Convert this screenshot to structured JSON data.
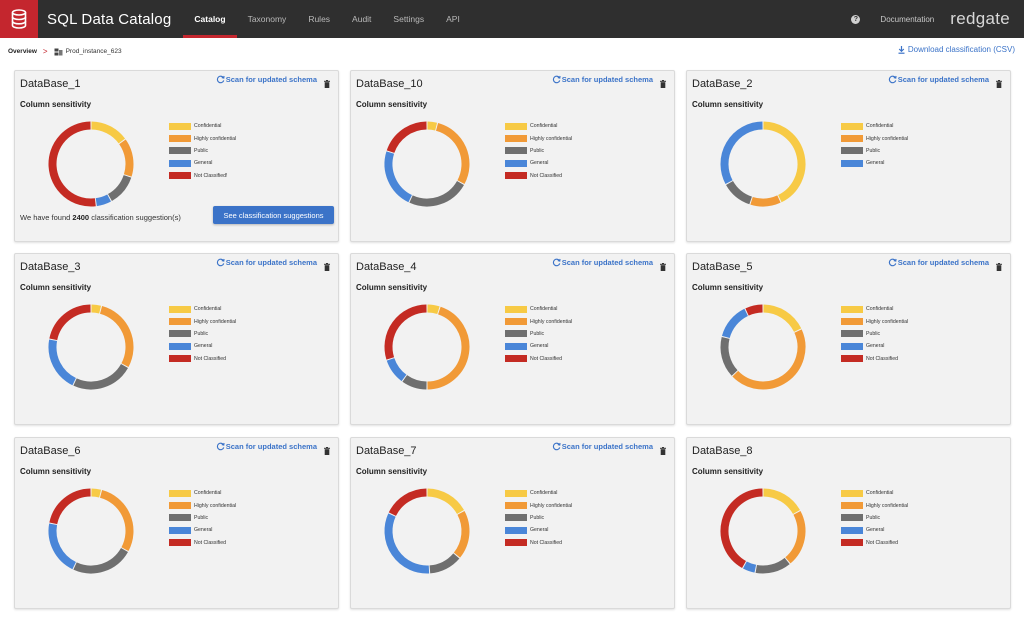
{
  "app": {
    "title": "SQL Data Catalog",
    "brand": "redgate",
    "nav": [
      "Catalog",
      "Taxonomy",
      "Rules",
      "Audit",
      "Settings",
      "API"
    ],
    "active_nav": "Catalog",
    "documentation": "Documentation",
    "help": "?"
  },
  "breadcrumb": {
    "overview": "Overview",
    "separator": ">",
    "current": "Prod_instance_623"
  },
  "download_label": "Download classification (CSV)",
  "scan_label": "Scan for updated schema",
  "subtitle": "Column sensitivity",
  "colors": {
    "Confidential": "#f7ca45",
    "Highly confidential": "#f19a37",
    "Public": "#6f6f6f",
    "General": "#4a86d8",
    "Not Classified": "#c42b23",
    "accent": "#3b73c8",
    "brand_red": "#c4262e"
  },
  "cards": [
    {
      "name": "DataBase_1",
      "scan": true,
      "legend": [
        "Confidential",
        "Highly confidential",
        "Public",
        "General",
        "Not Classified!"
      ],
      "segments": [
        {
          "category": "Confidential",
          "value": 15
        },
        {
          "category": "Highly confidential",
          "value": 15
        },
        {
          "category": "Public",
          "value": 12
        },
        {
          "category": "General",
          "value": 6
        },
        {
          "category": "Not Classified",
          "value": 52
        }
      ],
      "found_prefix": "We have found",
      "found_count": "2400",
      "found_suffix": "classification suggestion(s)",
      "suggest_button": "See classification suggestions"
    },
    {
      "name": "DataBase_10",
      "scan": true,
      "legend": [
        "Confidential",
        "Highly confidential",
        "Public",
        "General",
        "Not Classified"
      ],
      "segments": [
        {
          "category": "Confidential",
          "value": 4
        },
        {
          "category": "Highly confidential",
          "value": 29
        },
        {
          "category": "Public",
          "value": 24
        },
        {
          "category": "General",
          "value": 23
        },
        {
          "category": "Not Classified",
          "value": 20
        }
      ]
    },
    {
      "name": "DataBase_2",
      "scan": true,
      "legend": [
        "Confidential",
        "Highly confidential",
        "Public",
        "General"
      ],
      "segments": [
        {
          "category": "Confidential",
          "value": 43
        },
        {
          "category": "Highly confidential",
          "value": 12
        },
        {
          "category": "Public",
          "value": 12
        },
        {
          "category": "General",
          "value": 33
        }
      ]
    },
    {
      "name": "DataBase_3",
      "scan": true,
      "legend": [
        "Confidential",
        "Highly confidential",
        "Public",
        "General",
        "Not Classified"
      ],
      "segments": [
        {
          "category": "Confidential",
          "value": 4
        },
        {
          "category": "Highly confidential",
          "value": 29
        },
        {
          "category": "Public",
          "value": 24
        },
        {
          "category": "General",
          "value": 21
        },
        {
          "category": "Not Classified",
          "value": 22
        }
      ]
    },
    {
      "name": "DataBase_4",
      "scan": true,
      "legend": [
        "Confidential",
        "Highly confidential",
        "Public",
        "General",
        "Not Classified"
      ],
      "segments": [
        {
          "category": "Confidential",
          "value": 5
        },
        {
          "category": "Highly confidential",
          "value": 45
        },
        {
          "category": "Public",
          "value": 10
        },
        {
          "category": "General",
          "value": 10
        },
        {
          "category": "Not Classified",
          "value": 30
        }
      ]
    },
    {
      "name": "DataBase_5",
      "scan": true,
      "legend": [
        "Confidential",
        "Highly confidential",
        "Public",
        "General",
        "Not Classified"
      ],
      "segments": [
        {
          "category": "Confidential",
          "value": 18
        },
        {
          "category": "Highly confidential",
          "value": 45
        },
        {
          "category": "Public",
          "value": 16
        },
        {
          "category": "General",
          "value": 14
        },
        {
          "category": "Not Classified",
          "value": 7
        }
      ]
    },
    {
      "name": "DataBase_6",
      "scan": true,
      "legend": [
        "Confidential",
        "Highly confidential",
        "Public",
        "General",
        "Not Classified"
      ],
      "segments": [
        {
          "category": "Confidential",
          "value": 4
        },
        {
          "category": "Highly confidential",
          "value": 29
        },
        {
          "category": "Public",
          "value": 24
        },
        {
          "category": "General",
          "value": 21
        },
        {
          "category": "Not Classified",
          "value": 22
        }
      ]
    },
    {
      "name": "DataBase_7",
      "scan": true,
      "legend": [
        "Confidential",
        "Highly confidential",
        "Public",
        "General",
        "Not Classified"
      ],
      "segments": [
        {
          "category": "Confidential",
          "value": 17
        },
        {
          "category": "Highly confidential",
          "value": 19
        },
        {
          "category": "Public",
          "value": 13
        },
        {
          "category": "General",
          "value": 33
        },
        {
          "category": "Not Classified",
          "value": 18
        }
      ]
    },
    {
      "name": "DataBase_8",
      "scan": false,
      "legend": [
        "Confidential",
        "Highly confidential",
        "Public",
        "General",
        "Not Classified"
      ],
      "segments": [
        {
          "category": "Confidential",
          "value": 17
        },
        {
          "category": "Highly confidential",
          "value": 22
        },
        {
          "category": "Public",
          "value": 14
        },
        {
          "category": "General",
          "value": 5
        },
        {
          "category": "Not Classified",
          "value": 42
        }
      ]
    }
  ]
}
